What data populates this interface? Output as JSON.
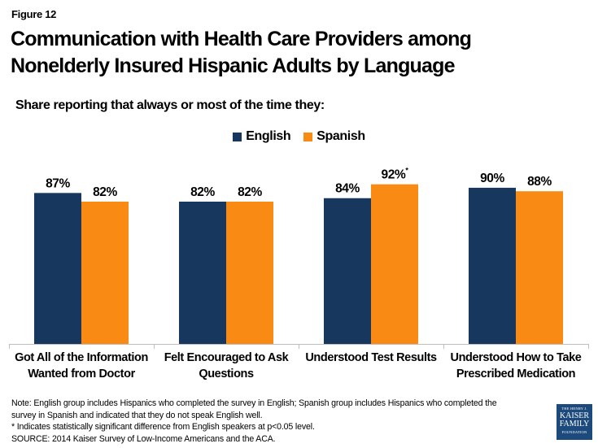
{
  "figure_label": "Figure 12",
  "title_line1": "Communication with Health Care Providers among",
  "title_line2": "Nonelderly Insured Hispanic Adults by Language",
  "subtitle": "Share reporting that always or most of the time they:",
  "colors": {
    "english": "#17375e",
    "spanish": "#f98b14",
    "axis": "#bfbfbf"
  },
  "chart_data": {
    "type": "bar",
    "title": "Communication with Health Care Providers among Nonelderly Insured Hispanic Adults by Language",
    "subtitle": "Share reporting that always or most of the time they:",
    "xlabel": "",
    "ylabel": "",
    "ylim": [
      0,
      100
    ],
    "grid": false,
    "legend_position": "top-center",
    "categories": [
      "Got All of the Information Wanted from Doctor",
      "Felt Encouraged to Ask Questions",
      "Understood Test Results",
      "Understood How to Take Prescribed Medication"
    ],
    "category_lines": [
      [
        "Got All of the Information",
        "Wanted from Doctor"
      ],
      [
        "Felt Encouraged to Ask",
        "Questions"
      ],
      [
        "Understood Test Results",
        ""
      ],
      [
        "Understood How to Take",
        "Prescribed Medication"
      ]
    ],
    "series": [
      {
        "name": "English",
        "values": [
          87,
          82,
          84,
          90
        ],
        "labels": [
          "87%",
          "82%",
          "84%",
          "90%"
        ],
        "significant": [
          false,
          false,
          false,
          false
        ]
      },
      {
        "name": "Spanish",
        "values": [
          82,
          82,
          92,
          88
        ],
        "labels": [
          "82%",
          "82%",
          "92%",
          "88%"
        ],
        "significant": [
          false,
          false,
          true,
          false
        ]
      }
    ],
    "significance_marker": "*"
  },
  "notes": {
    "line1": "Note: English group includes Hispanics who completed the survey in English; Spanish group includes Hispanics who completed the",
    "line2": "survey in Spanish and indicated that they do not speak English well.",
    "line3": "* Indicates statistically significant difference from English speakers at p<0.05 level.",
    "line4": "SOURCE: 2014 Kaiser Survey of Low-Income Americans and the ACA."
  },
  "logo": {
    "line1": "THE HENRY J.",
    "line2": "KAISER",
    "line3": "FAMILY",
    "line4": "FOUNDATION"
  }
}
